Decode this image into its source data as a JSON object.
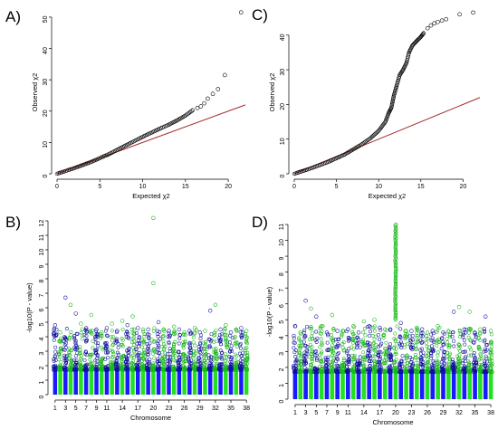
{
  "panels": {
    "A": {
      "letter": "A)"
    },
    "B": {
      "letter": "B)"
    },
    "C": {
      "letter": "C)"
    },
    "D": {
      "letter": "D)"
    }
  },
  "colors": {
    "qq_points": "#000000",
    "qq_line": "#a52a2a",
    "manhattan_odd": "#1a1aff",
    "manhattan_even": "#22e022",
    "manhattan_odd_outline": "#1010a0",
    "manhattan_even_outline": "#18b818"
  },
  "chart_data": [
    {
      "id": "A",
      "type": "scatter",
      "title": "",
      "xlabel": "Expected χ2",
      "ylabel": "Observed χ2",
      "xlim": [
        0,
        22
      ],
      "ylim": [
        0,
        52
      ],
      "xticks": [
        0,
        5,
        10,
        15,
        20
      ],
      "yticks": [
        0,
        10,
        20,
        30,
        40,
        50
      ],
      "reference_line": {
        "x": [
          0,
          22
        ],
        "y": [
          0,
          22
        ]
      },
      "curve_points": [
        [
          0,
          0
        ],
        [
          2,
          1.8
        ],
        [
          4,
          3.8
        ],
        [
          6,
          6.2
        ],
        [
          8,
          9
        ],
        [
          10,
          11.8
        ],
        [
          12,
          14.4
        ],
        [
          13,
          15.6
        ],
        [
          14,
          17
        ],
        [
          15,
          18.6
        ],
        [
          16,
          20.6
        ]
      ],
      "tail_points": [
        [
          16.4,
          21
        ],
        [
          16.8,
          21.5
        ],
        [
          17.2,
          22.5
        ],
        [
          17.6,
          24
        ],
        [
          18.2,
          25.5
        ],
        [
          18.8,
          27
        ],
        [
          19.6,
          31.5
        ],
        [
          21.5,
          51.5
        ]
      ]
    },
    {
      "id": "C",
      "type": "scatter",
      "title": "",
      "xlabel": "Expected χ2",
      "ylabel": "Observed χ2",
      "xlim": [
        0,
        22
      ],
      "ylim": [
        0,
        47
      ],
      "xticks": [
        0,
        5,
        10,
        15,
        20
      ],
      "yticks": [
        0,
        10,
        20,
        30,
        40
      ],
      "reference_line": {
        "x": [
          0,
          22
        ],
        "y": [
          0,
          22
        ]
      },
      "curve_points": [
        [
          0,
          0
        ],
        [
          2,
          1.6
        ],
        [
          4,
          3.4
        ],
        [
          6,
          5.6
        ],
        [
          8,
          8.5
        ],
        [
          9,
          10.2
        ],
        [
          10,
          12.4
        ],
        [
          10.8,
          15
        ],
        [
          11.2,
          17.6
        ],
        [
          11.5,
          19
        ],
        [
          11.8,
          22.5
        ],
        [
          12.2,
          26
        ],
        [
          12.5,
          28.5
        ],
        [
          12.9,
          30
        ],
        [
          13.3,
          32
        ],
        [
          13.6,
          35
        ],
        [
          14,
          37
        ],
        [
          14.5,
          38.3
        ],
        [
          15,
          39.5
        ],
        [
          15.4,
          40.8
        ]
      ],
      "tail_points": [
        [
          15.8,
          42
        ],
        [
          16.2,
          42.8
        ],
        [
          16.6,
          43.4
        ],
        [
          17,
          43.8
        ],
        [
          17.5,
          44.2
        ],
        [
          18,
          44.6
        ],
        [
          19.6,
          46
        ],
        [
          21.2,
          46.5
        ]
      ]
    },
    {
      "id": "B",
      "type": "scatter",
      "title": "",
      "xlabel": "Chromosome",
      "ylabel": "-log10(P - value)",
      "ylim": [
        0,
        12
      ],
      "yticks": [
        0,
        1,
        2,
        3,
        4,
        5,
        6,
        7,
        8,
        9,
        10,
        11,
        12
      ],
      "chromosome_tick_labels": [
        "1",
        "3",
        "5",
        "7",
        "9",
        "11",
        "14",
        "17",
        "20",
        "23",
        "26",
        "29",
        "32",
        "35",
        "38"
      ],
      "chromosome_count": 38,
      "chromosome_peaks": [
        4.8,
        4.3,
        6.7,
        6.2,
        5.6,
        4.9,
        4.6,
        5.5,
        4.5,
        4.3,
        4.6,
        4.9,
        4.4,
        5.1,
        4.8,
        5.4,
        4.6,
        4.5,
        4.5,
        12.2,
        5.0,
        4.5,
        4.4,
        4.7,
        4.5,
        4.3,
        4.4,
        4.6,
        4.3,
        4.4,
        5.8,
        6.2,
        4.5,
        4.8,
        4.3,
        4.5,
        4.6,
        4.4
      ],
      "outliers": [
        {
          "chr": 20,
          "values": [
            12.2,
            7.7
          ]
        }
      ]
    },
    {
      "id": "D",
      "type": "scatter",
      "title": "",
      "xlabel": "Chromosome",
      "ylabel": "-log10(P - value)",
      "ylim": [
        0,
        11
      ],
      "yticks": [
        0,
        1,
        2,
        3,
        4,
        5,
        6,
        7,
        8,
        9,
        10,
        11
      ],
      "chromosome_tick_labels": [
        "1",
        "3",
        "5",
        "7",
        "9",
        "11",
        "14",
        "17",
        "20",
        "23",
        "26",
        "29",
        "32",
        "35",
        "38"
      ],
      "chromosome_count": 38,
      "chromosome_peaks": [
        4.6,
        4.2,
        6.2,
        5.7,
        5.2,
        4.6,
        4.2,
        5.3,
        4.3,
        4.3,
        4.4,
        4.6,
        4.2,
        4.9,
        4.6,
        5.0,
        4.5,
        4.4,
        4.4,
        11.0,
        4.8,
        4.3,
        4.3,
        4.5,
        4.4,
        4.2,
        4.3,
        4.6,
        4.2,
        4.3,
        5.5,
        5.8,
        4.4,
        5.5,
        4.2,
        4.4,
        5.2,
        4.3
      ],
      "signal": {
        "chr": 20,
        "from": 5.0,
        "to": 11.0
      }
    }
  ]
}
